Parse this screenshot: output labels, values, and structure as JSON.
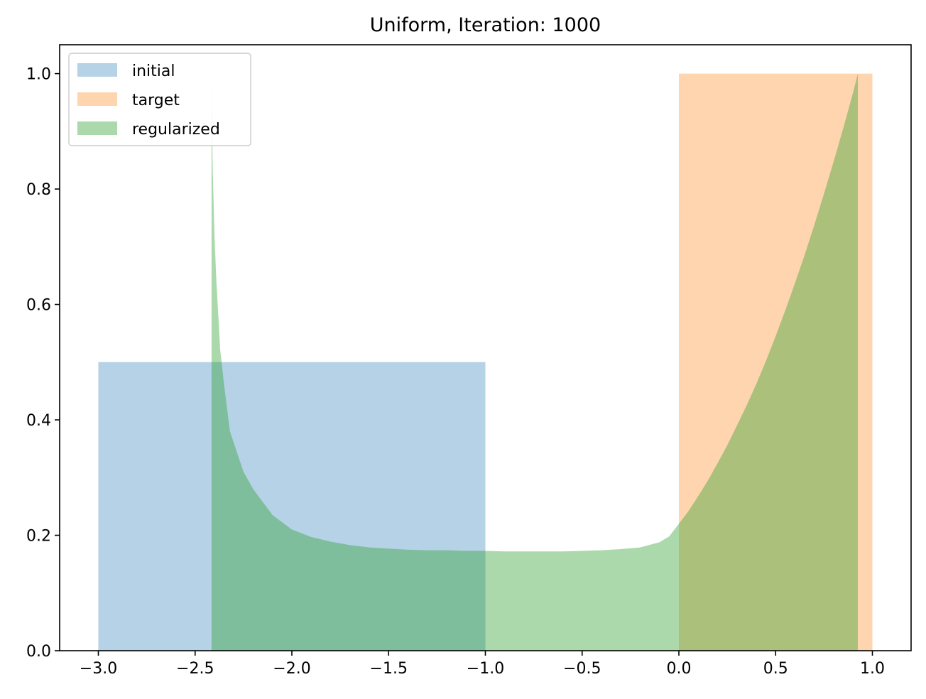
{
  "chart_data": {
    "type": "area",
    "title": "Uniform, Iteration: 1000",
    "xlabel": "",
    "ylabel": "",
    "xlim": [
      -3.2,
      1.2
    ],
    "ylim": [
      0.0,
      1.05
    ],
    "x_ticks": [
      -3.0,
      -2.5,
      -2.0,
      -1.5,
      -1.0,
      -0.5,
      0.0,
      0.5,
      1.0
    ],
    "x_tick_labels": [
      "−3.0",
      "−2.5",
      "−2.0",
      "−1.5",
      "−1.0",
      "−0.5",
      "0.0",
      "0.5",
      "1.0"
    ],
    "y_ticks": [
      0.0,
      0.2,
      0.4,
      0.6,
      0.8,
      1.0
    ],
    "y_tick_labels": [
      "0.0",
      "0.2",
      "0.4",
      "0.6",
      "0.8",
      "1.0"
    ],
    "grid": false,
    "legend": "top-left",
    "series": [
      {
        "name": "initial",
        "color": "#1f77b4",
        "alpha": 0.33,
        "x": [
          -3.0,
          -3.0,
          -1.0,
          -1.0
        ],
        "y": [
          0.0,
          0.5,
          0.5,
          0.0
        ]
      },
      {
        "name": "target",
        "color": "#ff7f0e",
        "alpha": 0.33,
        "x": [
          0.0,
          0.0,
          1.0,
          1.0
        ],
        "y": [
          0.0,
          1.0,
          1.0,
          0.0
        ]
      },
      {
        "name": "regularized",
        "color": "#2ca02c",
        "alpha": 0.4,
        "x": [
          -2.415,
          -2.415,
          -2.41,
          -2.4,
          -2.39,
          -2.37,
          -2.35,
          -2.32,
          -2.3,
          -2.25,
          -2.2,
          -2.1,
          -2.0,
          -1.9,
          -1.8,
          -1.7,
          -1.6,
          -1.5,
          -1.4,
          -1.3,
          -1.2,
          -1.1,
          -1.0,
          -0.9,
          -0.8,
          -0.7,
          -0.6,
          -0.5,
          -0.4,
          -0.3,
          -0.2,
          -0.1,
          -0.05,
          0.0,
          0.05,
          0.1,
          0.15,
          0.2,
          0.25,
          0.3,
          0.35,
          0.4,
          0.45,
          0.5,
          0.55,
          0.6,
          0.65,
          0.7,
          0.75,
          0.8,
          0.85,
          0.9,
          0.925,
          0.925
        ],
        "y": [
          0.0,
          1.0,
          0.85,
          0.72,
          0.64,
          0.52,
          0.46,
          0.38,
          0.36,
          0.31,
          0.28,
          0.235,
          0.21,
          0.197,
          0.189,
          0.183,
          0.179,
          0.177,
          0.175,
          0.174,
          0.174,
          0.173,
          0.173,
          0.172,
          0.172,
          0.172,
          0.172,
          0.173,
          0.174,
          0.176,
          0.179,
          0.188,
          0.198,
          0.22,
          0.242,
          0.268,
          0.295,
          0.325,
          0.356,
          0.39,
          0.425,
          0.462,
          0.502,
          0.545,
          0.59,
          0.637,
          0.686,
          0.738,
          0.792,
          0.848,
          0.906,
          0.967,
          1.0,
          0.0
        ]
      }
    ]
  }
}
